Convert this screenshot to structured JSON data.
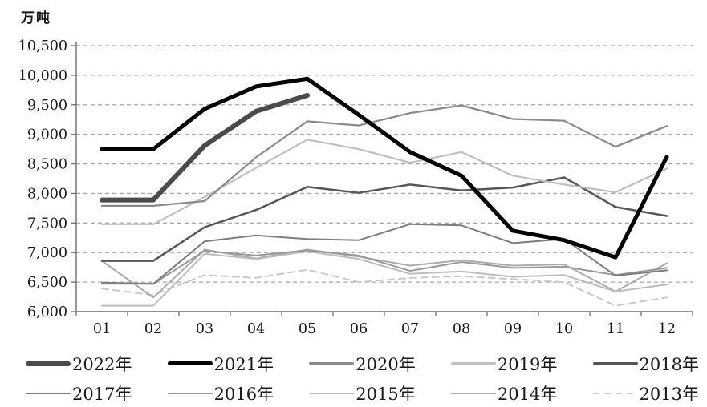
{
  "chart_data": {
    "type": "line",
    "unit_label": "万吨",
    "x_labels": [
      "01",
      "02",
      "03",
      "04",
      "05",
      "06",
      "07",
      "08",
      "09",
      "10",
      "11",
      "12"
    ],
    "y_ticks": [
      {
        "value": 10500,
        "label": "10,500"
      },
      {
        "value": 10000,
        "label": "10,000"
      },
      {
        "value": 9500,
        "label": "9,500"
      },
      {
        "value": 9000,
        "label": "9,000"
      },
      {
        "value": 8500,
        "label": "8,500"
      },
      {
        "value": 8000,
        "label": "8,000"
      },
      {
        "value": 7500,
        "label": "7,500"
      },
      {
        "value": 7000,
        "label": "7,000"
      },
      {
        "value": 6500,
        "label": "6,500"
      },
      {
        "value": 6000,
        "label": "6,000"
      }
    ],
    "ylim": [
      6000,
      10500
    ],
    "grid": "dashed-horizontal",
    "legend_position": "bottom",
    "legend_rows": [
      [
        "2022年",
        "2021年",
        "2020年",
        "2019年",
        "2018年"
      ],
      [
        "2017年",
        "2016年",
        "2015年",
        "2014年",
        "2013年"
      ]
    ],
    "series": [
      {
        "name": "2013年",
        "color": "#c9c9c9",
        "width": 2,
        "dashed": true,
        "values": [
          6390,
          6280,
          6620,
          6570,
          6710,
          6500,
          6570,
          6600,
          6550,
          6500,
          6100,
          6240
        ]
      },
      {
        "name": "2014年",
        "color": "#ababab",
        "width": 2,
        "dashed": false,
        "values": [
          6860,
          6240,
          7050,
          6900,
          7050,
          6930,
          6780,
          6870,
          6780,
          6800,
          6340,
          6820
        ]
      },
      {
        "name": "2015年",
        "color": "#bcbcbc",
        "width": 2,
        "dashed": false,
        "values": [
          6100,
          6100,
          6980,
          6890,
          7020,
          6890,
          6640,
          6680,
          6590,
          6620,
          6340,
          6460
        ]
      },
      {
        "name": "2016年",
        "color": "#999999",
        "width": 2,
        "dashed": false,
        "values": [
          6470,
          6470,
          7030,
          6950,
          7040,
          6950,
          6690,
          6840,
          6740,
          6760,
          6620,
          6740
        ]
      },
      {
        "name": "2017年",
        "color": "#7d7d7d",
        "width": 2,
        "dashed": false,
        "values": [
          6490,
          6470,
          7190,
          7290,
          7230,
          7210,
          7480,
          7460,
          7160,
          7230,
          6610,
          6700
        ]
      },
      {
        "name": "2018年",
        "color": "#575757",
        "width": 2.5,
        "dashed": false,
        "values": [
          6860,
          6860,
          7430,
          7720,
          8110,
          8010,
          8150,
          8050,
          8100,
          8270,
          7770,
          7620
        ]
      },
      {
        "name": "2019年",
        "color": "#bfbfbf",
        "width": 2.2,
        "dashed": false,
        "values": [
          7480,
          7480,
          7940,
          8430,
          8910,
          8750,
          8520,
          8700,
          8300,
          8150,
          8020,
          8420
        ]
      },
      {
        "name": "2020年",
        "color": "#8a8a8a",
        "width": 2.2,
        "dashed": false,
        "values": [
          7790,
          7790,
          7870,
          8610,
          9220,
          9150,
          9360,
          9490,
          9260,
          9230,
          8790,
          9140
        ]
      },
      {
        "name": "2021年",
        "color": "#000000",
        "width": 5,
        "dashed": false,
        "values": [
          8750,
          8750,
          9430,
          9810,
          9940,
          9330,
          8700,
          8300,
          7370,
          7210,
          6920,
          8620
        ]
      },
      {
        "name": "2022年",
        "color": "#4a4a4a",
        "width": 6,
        "dashed": false,
        "values": [
          7890,
          7890,
          8810,
          9390,
          9660
        ]
      }
    ]
  }
}
